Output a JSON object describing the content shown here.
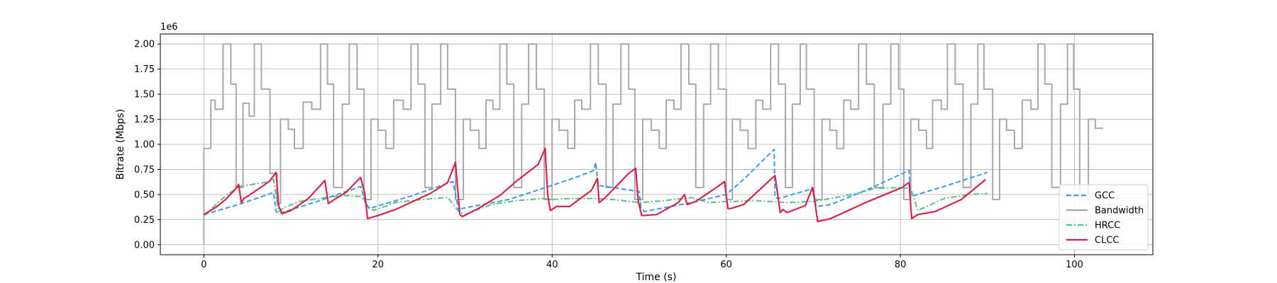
{
  "chart_data": {
    "type": "line",
    "xlabel": "Time (s)",
    "ylabel": "Bitrate (Mbps)",
    "y_offset_label": "1e6",
    "xlim": [
      -5,
      109
    ],
    "ylim": [
      -100000,
      2100000
    ],
    "x_ticks": [
      0,
      20,
      40,
      60,
      80,
      100
    ],
    "x_tick_labels": [
      "0",
      "20",
      "40",
      "60",
      "80",
      "100"
    ],
    "y_ticks": [
      0,
      250000,
      500000,
      750000,
      1000000,
      1250000,
      1500000,
      1750000,
      2000000
    ],
    "y_tick_labels": [
      "0.00",
      "0.25",
      "0.50",
      "0.75",
      "1.00",
      "1.25",
      "1.50",
      "1.75",
      "2.00"
    ],
    "grid": true,
    "legend_position": "lower-right",
    "series": [
      {
        "name": "GCC",
        "color": "#3d9be9",
        "style": "dashed",
        "x": [
          0,
          4,
          8,
          8.3,
          8.6,
          13,
          18,
          18.6,
          19,
          24,
          28.6,
          29.3,
          29.6,
          35,
          40,
          43,
          44.8,
          45,
          45.3,
          50,
          50.2,
          50.6,
          56,
          60,
          62,
          65.5,
          65.6,
          66,
          70,
          70.3,
          72,
          76,
          80.5,
          81,
          81.2,
          85,
          90
        ],
        "y": [
          300000,
          400000,
          520000,
          330000,
          310000,
          430000,
          580000,
          410000,
          360000,
          490000,
          630000,
          330000,
          360000,
          450000,
          590000,
          680000,
          740000,
          820000,
          590000,
          530000,
          370000,
          330000,
          420000,
          500000,
          650000,
          950000,
          470000,
          460000,
          560000,
          380000,
          400000,
          540000,
          720000,
          740000,
          480000,
          580000,
          720000
        ]
      },
      {
        "name": "Bandwidth",
        "color": "#a8a8a8",
        "style": "solid",
        "x": [
          0,
          0,
          0.3,
          0.8,
          0.8,
          1.3,
          1.3,
          2.2,
          2.2,
          3.1,
          3.1,
          3.7,
          3.7,
          4.5,
          4.5,
          5.2,
          5.2,
          5.8,
          5.8,
          6.6,
          6.6,
          7.6,
          7.6,
          8.4,
          8.4,
          8.8,
          8.8,
          9.7,
          9.7,
          10.4,
          10.4,
          11.4,
          11.4,
          12.4,
          12.4,
          13.4,
          13.4,
          14.2,
          14.2,
          14.9,
          14.9,
          15.9,
          15.9,
          16.7,
          16.7,
          17.6,
          17.6,
          18.4,
          18.4,
          19.2,
          19.2,
          20.0,
          20.0,
          20.9,
          20.9,
          21.8,
          21.8,
          22.9,
          22.9,
          23.8,
          23.8,
          24.6,
          24.6,
          25.4,
          25.4,
          26.2,
          26.2,
          27.2,
          27.2,
          28.0,
          28.0,
          28.9,
          28.9,
          29.8,
          29.8,
          30.6,
          30.6,
          31.6,
          31.6,
          32.4,
          32.4,
          33.2,
          33.2,
          34.0,
          34.0,
          34.8,
          34.8,
          35.6,
          35.6,
          36.5,
          36.5,
          37.3,
          37.3,
          38.2,
          38.2,
          39.1,
          39.1,
          40.0,
          40.0,
          40.8,
          40.8,
          41.8,
          41.8,
          42.6,
          42.6,
          43.4,
          43.4,
          44.4,
          44.4,
          45.3,
          45.3,
          46.2,
          46.2,
          47.0,
          47.0,
          47.9,
          47.9,
          48.8,
          48.8,
          49.5,
          49.5,
          50.4,
          50.4,
          51.4,
          51.4,
          52.3,
          52.3,
          53.1,
          53.1,
          54.0,
          54.0,
          54.8,
          54.8,
          55.7,
          55.7,
          56.5,
          56.5,
          57.4,
          57.4,
          58.2,
          58.2,
          59.1,
          59.1,
          60.0,
          60.0,
          60.7,
          60.7,
          61.6,
          61.6,
          62.5,
          62.5,
          63.4,
          63.4,
          64.2,
          64.2,
          65.1,
          65.1,
          66.0,
          66.0,
          66.8,
          66.8,
          67.6,
          67.6,
          68.5,
          68.5,
          69.2,
          69.2,
          70.1,
          70.1,
          71.0,
          71.0,
          71.9,
          71.9,
          72.7,
          72.7,
          73.5,
          73.5,
          74.3,
          74.3,
          75.2,
          75.2,
          76.1,
          76.1,
          77.0,
          77.0,
          78.0,
          78.0,
          78.9,
          78.9,
          79.8,
          79.8,
          80.4,
          80.4,
          81.2,
          81.2,
          82.1,
          82.1,
          83.0,
          83.0,
          83.7,
          83.7,
          84.7,
          84.7,
          85.4,
          85.4,
          86.3,
          86.3,
          87.2,
          87.2,
          88.1,
          88.1,
          88.9,
          88.9,
          89.6,
          89.6,
          90.6,
          90.6,
          91.4,
          91.4,
          92.2,
          92.2,
          93.1,
          93.1,
          94.0,
          94.0,
          95.0,
          95.0,
          95.8,
          95.8,
          96.6,
          96.6,
          97.4,
          97.4,
          98.4,
          98.4,
          99.2,
          99.2,
          99.9,
          99.9,
          100.6,
          100.6,
          101.6,
          101.6,
          102.4,
          102.4,
          103.3
        ],
        "y": [
          0,
          960000,
          960000,
          960000,
          1440000,
          1440000,
          1350000,
          1350000,
          2000000,
          2000000,
          1600000,
          1600000,
          570000,
          570000,
          1410000,
          1410000,
          1280000,
          1280000,
          2000000,
          2000000,
          1550000,
          1550000,
          710000,
          710000,
          410000,
          410000,
          1250000,
          1250000,
          1150000,
          1150000,
          960000,
          960000,
          1420000,
          1420000,
          1350000,
          1350000,
          2000000,
          2000000,
          1600000,
          1600000,
          570000,
          570000,
          1400000,
          1400000,
          2000000,
          2000000,
          1550000,
          1550000,
          450000,
          450000,
          1250000,
          1250000,
          1140000,
          1140000,
          960000,
          960000,
          1440000,
          1440000,
          1350000,
          1350000,
          2000000,
          2000000,
          1600000,
          1600000,
          570000,
          570000,
          1400000,
          1400000,
          2000000,
          2000000,
          1550000,
          1550000,
          450000,
          450000,
          1250000,
          1250000,
          1140000,
          1140000,
          960000,
          960000,
          1440000,
          1440000,
          1350000,
          1350000,
          2000000,
          2000000,
          1600000,
          1600000,
          570000,
          570000,
          1400000,
          1400000,
          2000000,
          2000000,
          1550000,
          1550000,
          450000,
          450000,
          1250000,
          1250000,
          1140000,
          1140000,
          960000,
          960000,
          1440000,
          1440000,
          1350000,
          1350000,
          2000000,
          2000000,
          1600000,
          1600000,
          570000,
          570000,
          1400000,
          1400000,
          2000000,
          2000000,
          1550000,
          1550000,
          450000,
          450000,
          1250000,
          1250000,
          1140000,
          1140000,
          960000,
          960000,
          1440000,
          1440000,
          1350000,
          1350000,
          2000000,
          2000000,
          1600000,
          1600000,
          570000,
          570000,
          1400000,
          1400000,
          2000000,
          2000000,
          1550000,
          1550000,
          450000,
          450000,
          1250000,
          1250000,
          1140000,
          1140000,
          960000,
          960000,
          1440000,
          1440000,
          1350000,
          1350000,
          2000000,
          2000000,
          1600000,
          1600000,
          570000,
          570000,
          1400000,
          1400000,
          2000000,
          2000000,
          1550000,
          1550000,
          450000,
          450000,
          1250000,
          1250000,
          1140000,
          1140000,
          960000,
          960000,
          1440000,
          1440000,
          1350000,
          1350000,
          2000000,
          2000000,
          1600000,
          1600000,
          570000,
          570000,
          1400000,
          1400000,
          2000000,
          2000000,
          1550000,
          1550000,
          450000,
          450000,
          1250000,
          1250000,
          1140000,
          1140000,
          960000,
          960000,
          1440000,
          1440000,
          1350000,
          1350000,
          2000000,
          2000000,
          1600000,
          1600000,
          570000,
          570000,
          1400000,
          1400000,
          2000000,
          2000000,
          1550000,
          1550000,
          450000,
          450000,
          1250000,
          1250000,
          1140000,
          1140000,
          960000,
          960000,
          1440000,
          1440000,
          1350000,
          1350000,
          2000000,
          2000000,
          1600000,
          1600000,
          570000,
          570000,
          1400000,
          1400000,
          2000000,
          2000000,
          1550000,
          1550000,
          450000,
          450000,
          1250000,
          1250000,
          1160000,
          1160000
        ]
      },
      {
        "name": "HRCC",
        "color": "#5bbf86",
        "style": "dashdot",
        "x": [
          0,
          2,
          4,
          5.5,
          7,
          8,
          8.6,
          9.2,
          11,
          14,
          16,
          18,
          19,
          19.5,
          22,
          25,
          28,
          29.3,
          30,
          33,
          36,
          39,
          40,
          42,
          45,
          47,
          50,
          53,
          56,
          58,
          60,
          61,
          63,
          65,
          67,
          70,
          72,
          75,
          77,
          80,
          81.2,
          82,
          85,
          88,
          90
        ],
        "y": [
          290000,
          450000,
          580000,
          600000,
          620000,
          650000,
          330000,
          370000,
          430000,
          470000,
          490000,
          480000,
          370000,
          340000,
          420000,
          450000,
          470000,
          330000,
          300000,
          400000,
          440000,
          460000,
          450000,
          460000,
          460000,
          450000,
          420000,
          440000,
          470000,
          420000,
          430000,
          430000,
          440000,
          430000,
          420000,
          430000,
          460000,
          510000,
          560000,
          570000,
          560000,
          340000,
          460000,
          500000,
          510000
        ]
      },
      {
        "name": "CLCC",
        "color": "#d6234a",
        "style": "solid",
        "x": [
          0,
          1.5,
          2.5,
          3.5,
          4,
          4.3,
          4.6,
          5.5,
          7.5,
          8.3,
          8.6,
          9,
          10,
          12,
          13.9,
          14.3,
          15,
          16.3,
          18.0,
          18.5,
          18.8,
          20,
          22,
          24,
          26,
          28,
          28.9,
          29.4,
          29.7,
          31.5,
          34,
          36,
          38.4,
          39.2,
          39.5,
          39.8,
          40.5,
          42,
          44.5,
          45.2,
          45.4,
          46,
          48.8,
          49.6,
          49.9,
          50.3,
          52,
          54.5,
          55.2,
          55.5,
          56.5,
          59.2,
          59.8,
          60.2,
          60.5,
          62,
          65.6,
          66.2,
          66.5,
          67,
          69.1,
          69.9,
          70.2,
          70.5,
          72,
          74,
          76,
          80.2,
          81,
          81.3,
          82,
          84,
          87,
          89.8
        ],
        "y": [
          300000,
          380000,
          450000,
          540000,
          600000,
          420000,
          460000,
          510000,
          630000,
          720000,
          380000,
          310000,
          340000,
          460000,
          640000,
          410000,
          450000,
          520000,
          670000,
          500000,
          260000,
          290000,
          350000,
          430000,
          510000,
          620000,
          820000,
          300000,
          280000,
          360000,
          490000,
          640000,
          800000,
          960000,
          490000,
          340000,
          380000,
          380000,
          540000,
          660000,
          420000,
          460000,
          710000,
          760000,
          430000,
          290000,
          300000,
          420000,
          500000,
          400000,
          430000,
          590000,
          630000,
          360000,
          360000,
          400000,
          690000,
          320000,
          350000,
          320000,
          390000,
          570000,
          420000,
          230000,
          260000,
          340000,
          420000,
          570000,
          620000,
          260000,
          300000,
          330000,
          450000,
          650000
        ]
      }
    ]
  }
}
